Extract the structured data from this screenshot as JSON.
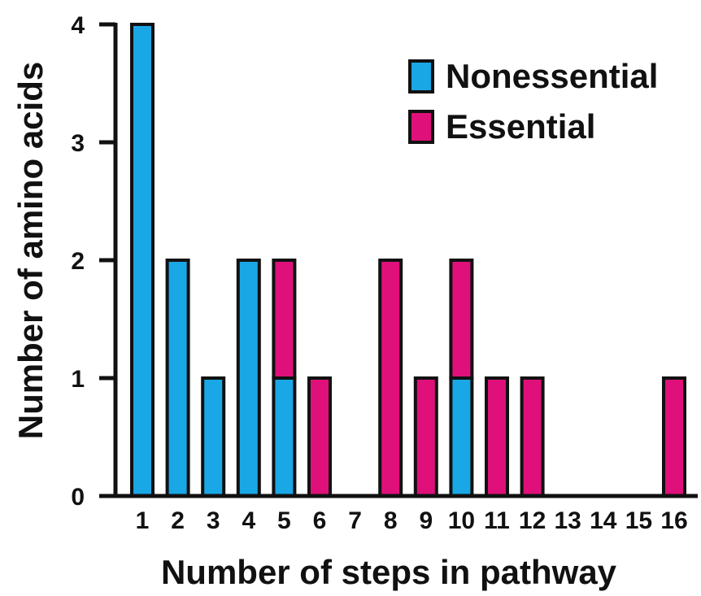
{
  "chart_data": {
    "type": "bar",
    "stacked": true,
    "categories": [
      "1",
      "2",
      "3",
      "4",
      "5",
      "6",
      "7",
      "8",
      "9",
      "10",
      "11",
      "12",
      "13",
      "14",
      "15",
      "16"
    ],
    "series": [
      {
        "name": "Nonessential",
        "color": "#1aa7e6",
        "values": [
          4,
          2,
          1,
          2,
          1,
          0,
          0,
          0,
          0,
          1,
          0,
          0,
          0,
          0,
          0,
          0
        ]
      },
      {
        "name": "Essential",
        "color": "#e0107a",
        "values": [
          0,
          0,
          0,
          0,
          1,
          1,
          0,
          2,
          1,
          1,
          1,
          1,
          0,
          0,
          0,
          1
        ]
      }
    ],
    "xlabel": "Number of steps in pathway",
    "ylabel": "Number of amino acids",
    "ylim": [
      0,
      4
    ],
    "yticks": [
      0,
      1,
      2,
      3,
      4
    ],
    "grid": false,
    "legend_position": "top-right"
  }
}
